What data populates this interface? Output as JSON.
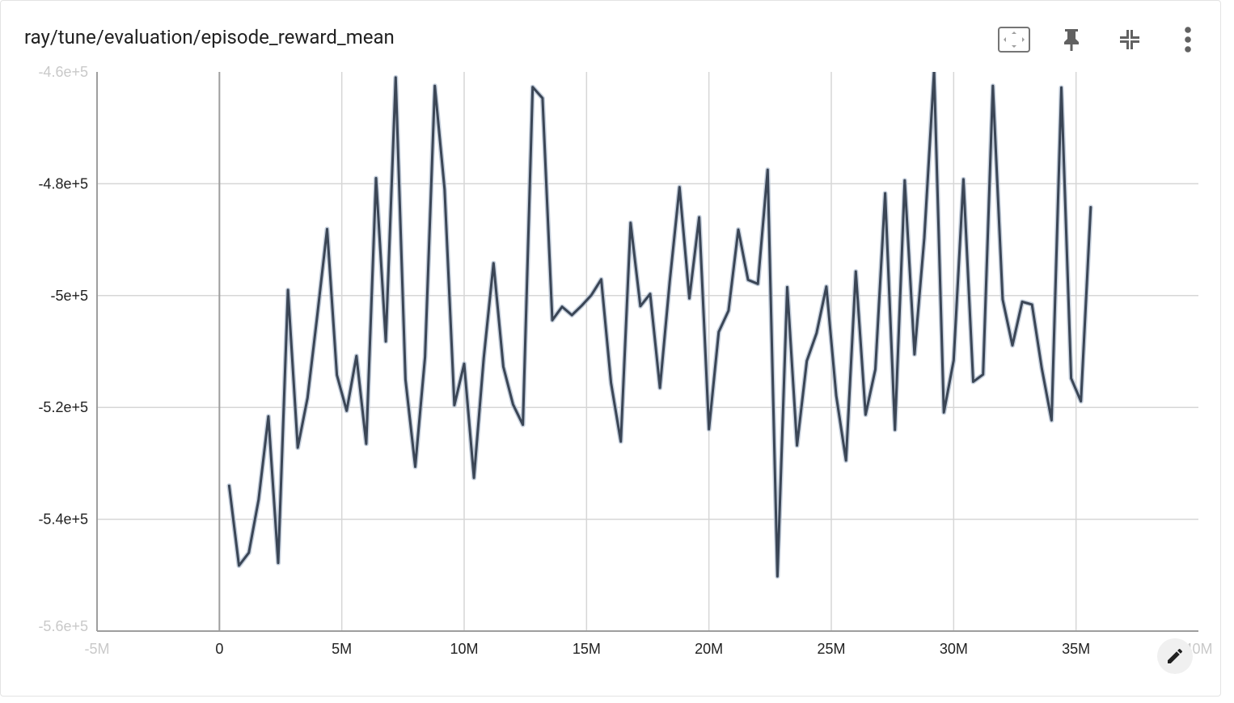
{
  "card": {
    "title": "ray/tune/evaluation/episode_reward_mean"
  },
  "toolbar": {
    "fit_icon": "fit-domain-icon",
    "pin_icon": "pin-icon",
    "collapse_icon": "collapse-icon",
    "more_icon": "more-vert-icon"
  },
  "edit_icon": "edit-icon",
  "colors": {
    "line": "#3b4656",
    "raw_line": "#b7c3d3",
    "grid": "#d6d6d6",
    "axis": "#9e9e9e"
  },
  "chart_data": {
    "type": "line",
    "title": "ray/tune/evaluation/episode_reward_mean",
    "xlabel": "",
    "ylabel": "",
    "xlim": [
      -5000000,
      40000000
    ],
    "ylim": [
      -560000,
      -460000
    ],
    "x_ticks": [
      "-5M",
      "0",
      "5M",
      "10M",
      "15M",
      "20M",
      "25M",
      "30M",
      "35M",
      "40M"
    ],
    "y_ticks": [
      "-4.6e+5",
      "-4.8e+5",
      "-5e+5",
      "-5.2e+5",
      "-5.4e+5",
      "-5.6e+5"
    ],
    "grid": true,
    "series": [
      {
        "x": [
          400000,
          800000,
          1200000,
          1600000,
          2000000,
          2400000,
          2800000,
          3200000,
          3600000,
          4000000,
          4400000,
          4800000,
          5200000,
          5600000,
          6000000,
          6400000,
          6800000,
          7200000,
          7600000,
          8000000,
          8400000,
          8800000,
          9200000,
          9600000,
          10000000,
          10400000,
          10800000,
          11200000,
          11600000,
          12000000,
          12400000,
          12800000,
          13200000,
          13600000,
          14000000,
          14400000,
          14800000,
          15200000,
          15600000,
          16000000,
          16400000,
          16800000,
          17200000,
          17600000,
          18000000,
          18400000,
          18800000,
          19200000,
          19600000,
          20000000,
          20400000,
          20800000,
          21200000,
          21600000,
          22000000,
          22400000,
          22800000,
          23200000,
          23600000,
          24000000,
          24400000,
          24800000,
          25200000,
          25600000,
          26000000,
          26400000,
          26800000,
          27200000,
          27600000,
          28000000,
          28400000,
          28800000,
          29200000,
          29600000,
          30000000,
          30400000,
          30800000,
          31200000,
          31600000,
          32000000,
          32400000,
          32800000,
          33200000,
          33600000,
          34000000,
          34400000,
          34800000,
          35200000,
          35600000
        ],
        "values": [
          -534000,
          -548300,
          -546000,
          -536500,
          -521600,
          -547800,
          -499000,
          -527200,
          -518300,
          -503500,
          -488100,
          -514200,
          -520600,
          -510800,
          -526500,
          -479000,
          -508200,
          -461000,
          -515000,
          -530600,
          -511000,
          -462500,
          -481000,
          -519600,
          -512200,
          -532600,
          -511200,
          -494200,
          -512700,
          -519500,
          -523100,
          -462700,
          -464700,
          -504400,
          -502000,
          -503500,
          -501800,
          -499900,
          -497100,
          -515600,
          -526100,
          -487000,
          -501900,
          -499700,
          -516500,
          -497500,
          -480600,
          -500500,
          -486000,
          -523900,
          -506500,
          -502700,
          -488200,
          -497200,
          -497900,
          -477500,
          -550200,
          -498500,
          -526800,
          -511700,
          -506700,
          -498400,
          -517900,
          -529500,
          -495700,
          -521300,
          -513200,
          -481700,
          -524000,
          -479400,
          -510500,
          -489700,
          -459900,
          -520900,
          -511600,
          -479200,
          -515400,
          -514100,
          -462500,
          -500700,
          -508900,
          -501100,
          -501600,
          -513000,
          -522300,
          -462800,
          -514800,
          -518900,
          -484200
        ]
      }
    ]
  }
}
